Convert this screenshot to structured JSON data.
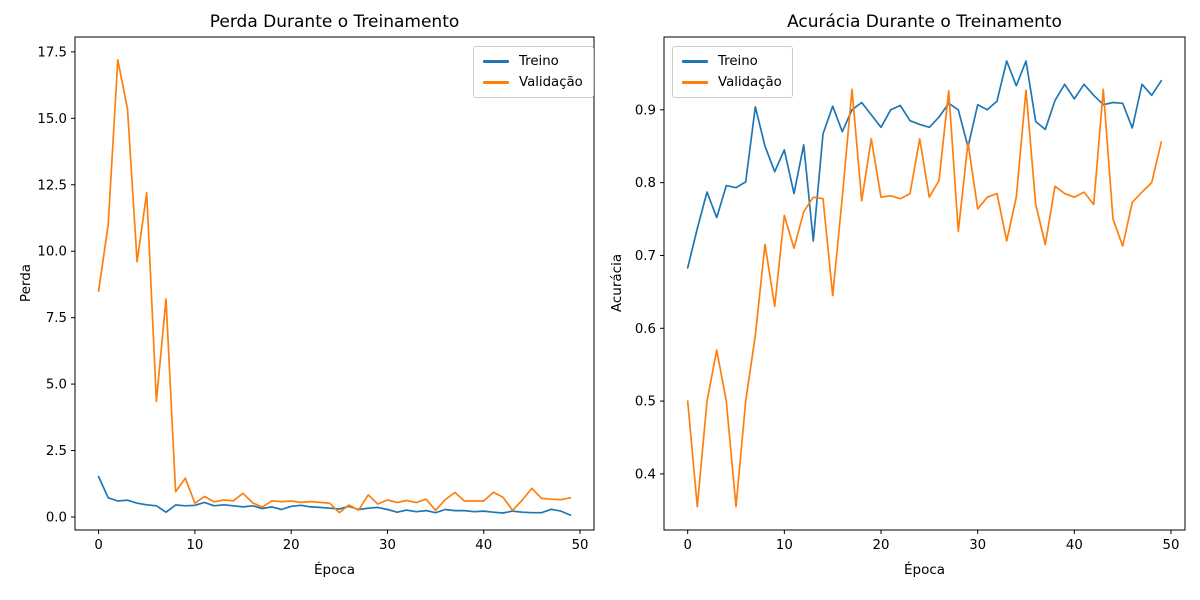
{
  "figure": {
    "background": "#ffffff"
  },
  "chart_data": [
    {
      "type": "line",
      "title": "Perda Durante o Treinamento",
      "xlabel": "Época",
      "ylabel": "Perda",
      "x_range": [
        0,
        49
      ],
      "xlim": [
        -2.45,
        51.45
      ],
      "ylim": [
        -0.49,
        18.06
      ],
      "xticks": [
        "0",
        "10",
        "20",
        "30",
        "40",
        "50"
      ],
      "yticks": [
        "0.0",
        "2.5",
        "5.0",
        "7.5",
        "10.0",
        "12.5",
        "15.0",
        "17.5"
      ],
      "grid": false,
      "legend_position": "upper-right",
      "series": [
        {
          "name": "Treino",
          "color": "#1f77b4",
          "values": [
            1.52,
            0.72,
            0.6,
            0.63,
            0.52,
            0.46,
            0.42,
            0.18,
            0.45,
            0.42,
            0.44,
            0.55,
            0.42,
            0.46,
            0.42,
            0.38,
            0.42,
            0.32,
            0.38,
            0.28,
            0.4,
            0.44,
            0.38,
            0.36,
            0.33,
            0.3,
            0.4,
            0.28,
            0.33,
            0.36,
            0.28,
            0.18,
            0.26,
            0.2,
            0.24,
            0.16,
            0.28,
            0.24,
            0.24,
            0.2,
            0.22,
            0.18,
            0.15,
            0.22,
            0.18,
            0.16,
            0.16,
            0.29,
            0.22,
            0.07
          ]
        },
        {
          "name": "Validação",
          "color": "#ff7f0e",
          "values": [
            8.5,
            11.0,
            17.2,
            15.35,
            9.6,
            12.2,
            4.35,
            8.2,
            0.95,
            1.46,
            0.52,
            0.77,
            0.57,
            0.64,
            0.61,
            0.89,
            0.53,
            0.37,
            0.61,
            0.58,
            0.6,
            0.55,
            0.58,
            0.55,
            0.52,
            0.16,
            0.45,
            0.26,
            0.83,
            0.49,
            0.64,
            0.55,
            0.62,
            0.54,
            0.67,
            0.25,
            0.65,
            0.92,
            0.6,
            0.6,
            0.6,
            0.93,
            0.74,
            0.25,
            0.64,
            1.08,
            0.7,
            0.67,
            0.65,
            0.72
          ]
        }
      ]
    },
    {
      "type": "line",
      "title": "Acurácia Durante o Treinamento",
      "xlabel": "Época",
      "ylabel": "Acurácia",
      "x_range": [
        0,
        49
      ],
      "xlim": [
        -2.45,
        51.45
      ],
      "ylim": [
        0.323,
        1.0
      ],
      "xticks": [
        "0",
        "10",
        "20",
        "30",
        "40",
        "50"
      ],
      "yticks": [
        "0.4",
        "0.5",
        "0.6",
        "0.7",
        "0.8",
        "0.9"
      ],
      "grid": false,
      "legend_position": "upper-left",
      "series": [
        {
          "name": "Treino",
          "color": "#1f77b4",
          "values": [
            0.683,
            0.737,
            0.787,
            0.752,
            0.796,
            0.793,
            0.801,
            0.904,
            0.85,
            0.815,
            0.845,
            0.785,
            0.852,
            0.72,
            0.867,
            0.905,
            0.87,
            0.9,
            0.91,
            0.893,
            0.876,
            0.9,
            0.906,
            0.885,
            0.88,
            0.876,
            0.89,
            0.909,
            0.9,
            0.849,
            0.907,
            0.9,
            0.912,
            0.967,
            0.933,
            0.967,
            0.884,
            0.873,
            0.913,
            0.935,
            0.915,
            0.935,
            0.92,
            0.907,
            0.91,
            0.909,
            0.875,
            0.935,
            0.92,
            0.94
          ]
        },
        {
          "name": "Validação",
          "color": "#ff7f0e",
          "values": [
            0.5,
            0.355,
            0.5,
            0.57,
            0.5,
            0.355,
            0.5,
            0.59,
            0.715,
            0.63,
            0.755,
            0.71,
            0.76,
            0.78,
            0.778,
            0.645,
            0.78,
            0.928,
            0.775,
            0.86,
            0.78,
            0.782,
            0.778,
            0.785,
            0.86,
            0.78,
            0.803,
            0.926,
            0.733,
            0.855,
            0.764,
            0.78,
            0.785,
            0.72,
            0.78,
            0.927,
            0.77,
            0.715,
            0.795,
            0.785,
            0.78,
            0.787,
            0.77,
            0.928,
            0.75,
            0.713,
            0.773,
            0.787,
            0.8,
            0.856
          ]
        }
      ]
    }
  ]
}
